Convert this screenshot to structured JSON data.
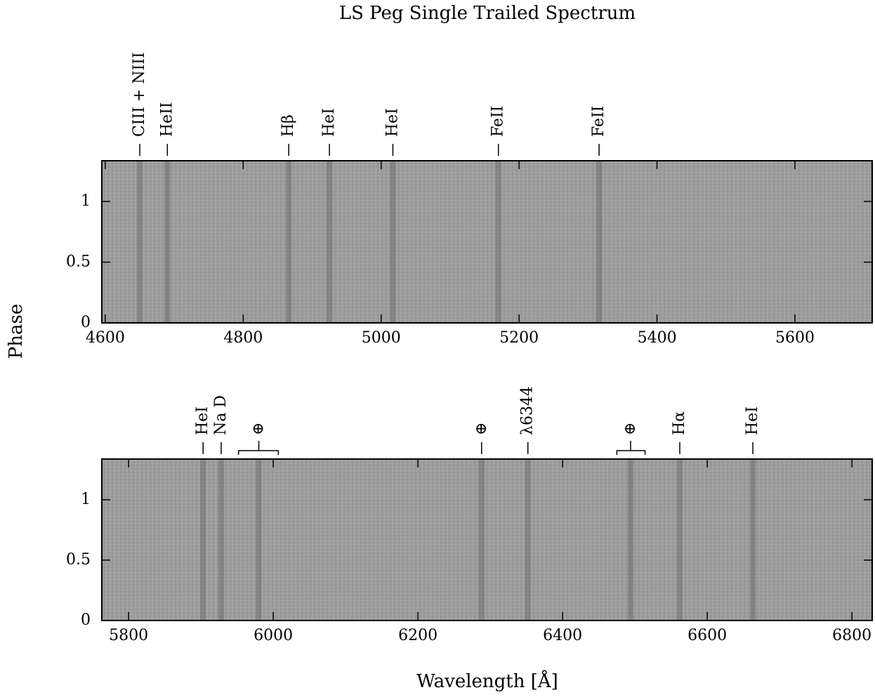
{
  "title": "LS Peg Single Trailed Spectrum",
  "y_label": "Phase",
  "x_label": "Wavelength [Å]",
  "chart_data": [
    {
      "type": "trailed-spectrum",
      "xlim": [
        4595,
        5712
      ],
      "ylim": [
        0,
        1.335
      ],
      "xticks": [
        4600,
        4800,
        5000,
        5200,
        5400,
        5600
      ],
      "yticks": [
        0,
        0.5,
        1
      ],
      "lines": [
        {
          "label": "CIII + NIII",
          "x": 4650
        },
        {
          "label": "HeII",
          "x": 4690
        },
        {
          "label": "Hβ",
          "x": 4866
        },
        {
          "label": "HeI",
          "x": 4925
        },
        {
          "label": "HeI",
          "x": 5017
        },
        {
          "label": "FeII",
          "x": 5170
        },
        {
          "label": "FeII",
          "x": 5316
        }
      ]
    },
    {
      "type": "trailed-spectrum",
      "xlim": [
        5763,
        6828
      ],
      "ylim": [
        0,
        1.337
      ],
      "xticks": [
        5800,
        6000,
        6200,
        6400,
        6600,
        6800
      ],
      "yticks": [
        0,
        0.5,
        1
      ],
      "lines": [
        {
          "label": "HeI",
          "x": 5903
        },
        {
          "label": "Na D",
          "x": 5928
        },
        {
          "label": "⊕",
          "x": 5980,
          "range": [
            5952,
            6007
          ]
        },
        {
          "label": "⊕",
          "x": 6288
        },
        {
          "label": "λ6344",
          "x": 6352
        },
        {
          "label": "⊕",
          "x": 6494,
          "range": [
            6475,
            6514
          ]
        },
        {
          "label": "Hα",
          "x": 6562
        },
        {
          "label": "HeI",
          "x": 6663
        }
      ]
    }
  ]
}
